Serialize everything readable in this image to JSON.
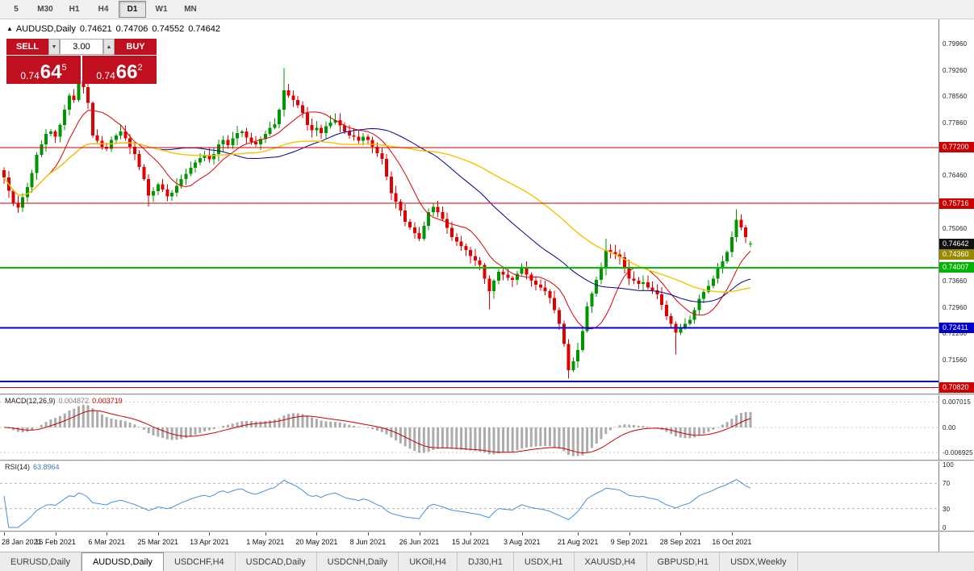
{
  "toolbar": {
    "timeframes": [
      "5",
      "M30",
      "H1",
      "H4",
      "D1",
      "W1",
      "MN"
    ],
    "active_timeframe": "D1"
  },
  "header": {
    "chart_icon": "▲",
    "symbol": "AUDUSD,Daily",
    "open": "0.74621",
    "high": "0.74706",
    "low": "0.74552",
    "close": "0.74642"
  },
  "trade_panel": {
    "sell_label": "SELL",
    "buy_label": "BUY",
    "volume": "3.00",
    "spin_down_icon": "▼",
    "spin_up_icon": "▲",
    "sell_price": {
      "prefix": "0.74",
      "big": "64",
      "sup": "5"
    },
    "buy_price": {
      "prefix": "0.74",
      "big": "66",
      "sup": "2"
    },
    "panel_color": "#c01020"
  },
  "chart_data": {
    "type": "candlestick",
    "symbol": "AUDUSD",
    "timeframe": "Daily",
    "current_bar": {
      "open": 0.74621,
      "high": 0.74706,
      "low": 0.74552,
      "close": 0.74642
    },
    "y_axis": {
      "ticks": [
        0.7996,
        0.7926,
        0.7856,
        0.7786,
        0.7646,
        0.7506,
        0.7366,
        0.7296,
        0.7226,
        0.7156
      ],
      "top_value": 0.806,
      "bottom_value": 0.70664
    },
    "price_label_boxes": [
      {
        "value": 0.772,
        "text": "0.77200",
        "color": "#cc0000"
      },
      {
        "value": 0.75716,
        "text": "0.75716",
        "color": "#cc0000"
      },
      {
        "value": 0.74642,
        "text": "0.74642",
        "color": "#111111"
      },
      {
        "value": 0.7436,
        "text": "0.74360",
        "color": "#988a00"
      },
      {
        "value": 0.74007,
        "text": "0.74007",
        "color": "#00b400"
      },
      {
        "value": 0.72411,
        "text": "0.72411",
        "color": "#0000cd"
      },
      {
        "value": 0.7082,
        "text": "0.70820",
        "color": "#cc0000"
      }
    ],
    "h_lines": [
      {
        "value": 0.772,
        "color": "#cc0000",
        "width": 1
      },
      {
        "value": 0.75716,
        "color": "#cc0000",
        "width": 1
      },
      {
        "value": 0.74007,
        "color": "#00c000",
        "width": 2
      },
      {
        "value": 0.72411,
        "color": "#0000d0",
        "width": 2
      },
      {
        "value": 0.7098,
        "color": "#0000d0",
        "width": 2
      },
      {
        "value": 0.7082,
        "color": "#cc0000",
        "width": 1
      }
    ],
    "x_axis": {
      "labels": [
        {
          "text": "28 Jan 2021",
          "index": 0
        },
        {
          "text": "16 Feb 2021",
          "index": 11
        },
        {
          "text": "6 Mar 2021",
          "index": 22
        },
        {
          "text": "25 Mar 2021",
          "index": 33
        },
        {
          "text": "13 Apr 2021",
          "index": 44
        },
        {
          "text": "1 May 2021",
          "index": 56
        },
        {
          "text": "20 May 2021",
          "index": 67
        },
        {
          "text": "8 Jun 2021",
          "index": 78
        },
        {
          "text": "26 Jun 2021",
          "index": 89
        },
        {
          "text": "15 Jul 2021",
          "index": 100
        },
        {
          "text": "3 Aug 2021",
          "index": 111
        },
        {
          "text": "21 Aug 2021",
          "index": 123
        },
        {
          "text": "9 Sep 2021",
          "index": 134
        },
        {
          "text": "28 Sep 2021",
          "index": 145
        },
        {
          "text": "16 Oct 2021",
          "index": 156
        }
      ]
    },
    "candles": {
      "note": "daily closes left-to-right; open of each bar = previous close",
      "first_open": 0.766,
      "up_color": "#009600",
      "down_color": "#e00000",
      "closes": [
        0.764,
        0.7605,
        0.7572,
        0.756,
        0.7588,
        0.7615,
        0.7652,
        0.77,
        0.7728,
        0.7756,
        0.7762,
        0.7748,
        0.778,
        0.782,
        0.7858,
        0.7846,
        0.7896,
        0.788,
        0.7838,
        0.7752,
        0.7738,
        0.7722,
        0.7716,
        0.774,
        0.7752,
        0.7762,
        0.7744,
        0.7722,
        0.7702,
        0.7668,
        0.7636,
        0.7592,
        0.7604,
        0.7622,
        0.7608,
        0.759,
        0.76,
        0.7618,
        0.7636,
        0.765,
        0.7666,
        0.768,
        0.7692,
        0.77,
        0.7688,
        0.7702,
        0.7728,
        0.774,
        0.7726,
        0.7744,
        0.7758,
        0.7762,
        0.7746,
        0.7734,
        0.7728,
        0.7742,
        0.7756,
        0.7772,
        0.7782,
        0.782,
        0.7872,
        0.7858,
        0.7846,
        0.7832,
        0.7812,
        0.778,
        0.7766,
        0.7772,
        0.7758,
        0.7776,
        0.7786,
        0.7792,
        0.7778,
        0.7762,
        0.7752,
        0.7748,
        0.7738,
        0.7748,
        0.774,
        0.7722,
        0.7704,
        0.769,
        0.7642,
        0.7598,
        0.7576,
        0.7552,
        0.7522,
        0.7508,
        0.7492,
        0.7478,
        0.7512,
        0.7548,
        0.7562,
        0.7548,
        0.753,
        0.7506,
        0.7482,
        0.747,
        0.7458,
        0.7448,
        0.7432,
        0.742,
        0.7408,
        0.7372,
        0.7338,
        0.7366,
        0.739,
        0.7382,
        0.7374,
        0.7368,
        0.7384,
        0.7398,
        0.7382,
        0.7366,
        0.7356,
        0.7348,
        0.7338,
        0.732,
        0.7288,
        0.7252,
        0.7198,
        0.7128,
        0.7152,
        0.7182,
        0.7232,
        0.7298,
        0.7332,
        0.7368,
        0.7398,
        0.7448,
        0.7442,
        0.7436,
        0.7428,
        0.7402,
        0.7372,
        0.7366,
        0.7358,
        0.7362,
        0.7348,
        0.734,
        0.733,
        0.7302,
        0.7272,
        0.7252,
        0.7228,
        0.7242,
        0.7252,
        0.7262,
        0.7288,
        0.7318,
        0.7336,
        0.7352,
        0.7372,
        0.7398,
        0.7418,
        0.7442,
        0.7482,
        0.7528,
        0.7508,
        0.7482,
        0.74642
      ],
      "wick_overrides": {
        "16": {
          "high": 0.7928
        },
        "31": {
          "low": 0.7563
        },
        "60": {
          "high": 0.793
        },
        "104": {
          "low": 0.729
        },
        "121": {
          "low": 0.7106
        },
        "129": {
          "high": 0.7478
        },
        "144": {
          "low": 0.717
        },
        "157": {
          "high": 0.7556
        }
      }
    },
    "moving_averages": [
      {
        "period": 10,
        "color": "#dd0000",
        "width": 1
      },
      {
        "period": 34,
        "color": "#000090",
        "width": 1
      },
      {
        "period": 55,
        "color": "#f5c400",
        "width": 1.4
      }
    ],
    "macd": {
      "label": "MACD(12,26,9)",
      "value_main": "0.004872",
      "value_signal": "0.003719",
      "fast": 12,
      "slow": 26,
      "signal": 9,
      "axis_labels": [
        "0.007015",
        "0.00",
        "-0.006925"
      ],
      "axis_values": [
        0.007015,
        0,
        -0.006925
      ],
      "histogram_color": "#ababab",
      "signal_color": "#cc0000"
    },
    "rsi": {
      "label": "RSI(14)",
      "value": "63.8964",
      "period": 14,
      "axis_labels": [
        "100",
        "70",
        "30",
        "0"
      ],
      "axis_values": [
        100,
        70,
        30,
        0
      ],
      "levels": [
        70,
        30
      ],
      "line_color": "#4a90d9"
    }
  },
  "tabs": {
    "items": [
      {
        "label": "EURUSD,Daily",
        "active": false
      },
      {
        "label": "AUDUSD,Daily",
        "active": true
      },
      {
        "label": "USDCHF,H4",
        "active": false
      },
      {
        "label": "USDCAD,Daily",
        "active": false
      },
      {
        "label": "USDCNH,Daily",
        "active": false
      },
      {
        "label": "UKOil,H4",
        "active": false
      },
      {
        "label": "DJ30,H1",
        "active": false
      },
      {
        "label": "USDX,H1",
        "active": false
      },
      {
        "label": "XAUUSD,H4",
        "active": false
      },
      {
        "label": "GBPUSD,H1",
        "active": false
      },
      {
        "label": "USDX,Weekly",
        "active": false
      }
    ]
  }
}
